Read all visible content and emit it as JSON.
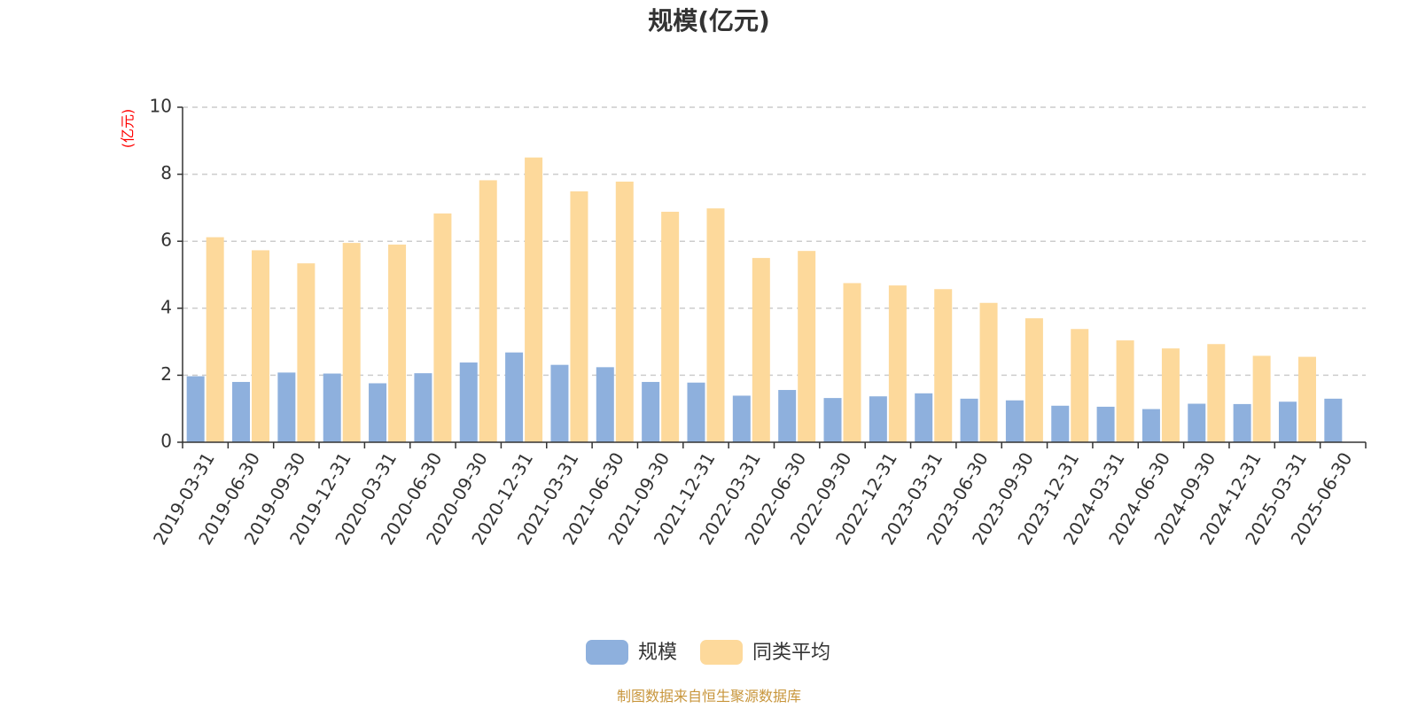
{
  "chart_data": {
    "type": "bar",
    "title": "规模(亿元)",
    "ylabel": "(亿元)",
    "ylim": [
      0,
      10
    ],
    "yticks": [
      0,
      2,
      4,
      6,
      8,
      10
    ],
    "grid": true,
    "legend_position": "bottom",
    "categories": [
      "2019-03-31",
      "2019-06-30",
      "2019-09-30",
      "2019-12-31",
      "2020-03-31",
      "2020-06-30",
      "2020-09-30",
      "2020-12-31",
      "2021-03-31",
      "2021-06-30",
      "2021-09-30",
      "2021-12-31",
      "2022-03-31",
      "2022-06-30",
      "2022-09-30",
      "2022-12-31",
      "2023-03-31",
      "2023-06-30",
      "2023-09-30",
      "2023-12-31",
      "2024-03-31",
      "2024-06-30",
      "2024-09-30",
      "2024-12-31",
      "2025-03-31",
      "2025-06-30"
    ],
    "series": [
      {
        "name": "规模",
        "color": "#8eb0dd",
        "values": [
          1.97,
          1.8,
          2.08,
          2.05,
          1.76,
          2.06,
          2.38,
          2.68,
          2.31,
          2.24,
          1.8,
          1.78,
          1.39,
          1.56,
          1.32,
          1.37,
          1.46,
          1.3,
          1.25,
          1.09,
          1.06,
          0.99,
          1.15,
          1.14,
          1.21,
          1.3
        ]
      },
      {
        "name": "同类平均",
        "color": "#fdd99b",
        "values": [
          6.12,
          5.73,
          5.34,
          5.95,
          5.9,
          6.83,
          7.82,
          8.5,
          7.49,
          7.78,
          6.88,
          6.98,
          5.5,
          5.71,
          4.75,
          4.68,
          4.57,
          4.16,
          3.7,
          3.38,
          3.04,
          2.8,
          2.93,
          2.58,
          2.55,
          null
        ]
      }
    ],
    "source": "制图数据来自恒生聚源数据库"
  }
}
